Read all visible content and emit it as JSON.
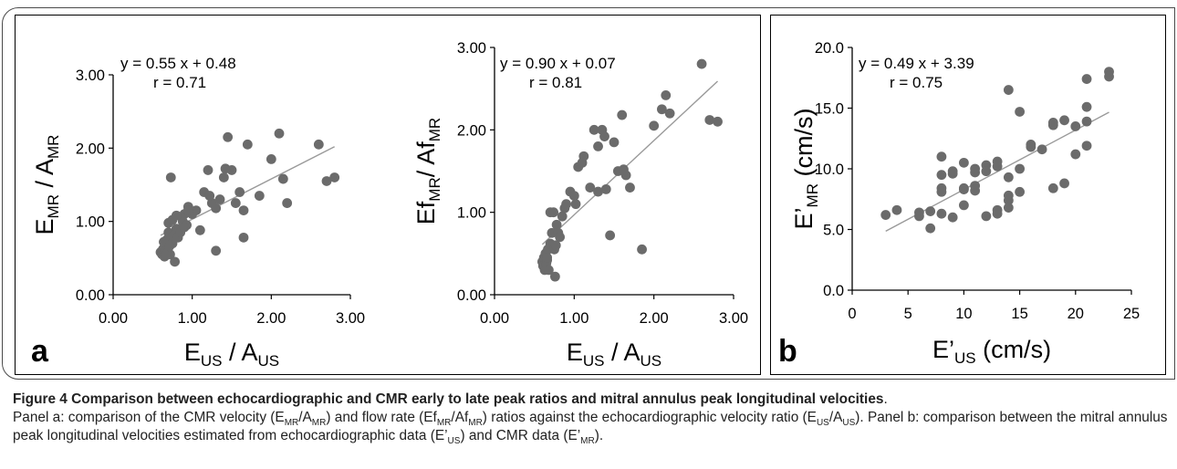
{
  "chart_data": [
    {
      "type": "scatter",
      "panel": "a",
      "xlabel": {
        "main": "E",
        "sub": "US",
        "sep": " / ",
        "main2": "A",
        "sub2": "US"
      },
      "ylabel": {
        "main": "E",
        "sub": "MR",
        "sep": " / ",
        "main2": "A",
        "sub2": "MR"
      },
      "xlim": [
        0,
        3
      ],
      "ylim": [
        0,
        3
      ],
      "xticks": [
        "0.00",
        "1.00",
        "2.00",
        "3.00"
      ],
      "yticks": [
        "0.00",
        "1.00",
        "2.00",
        "3.00"
      ],
      "equation": "y = 0.55 x + 0.48",
      "r_label": "r = 0.71",
      "fit": {
        "slope": 0.55,
        "intercept": 0.48,
        "x": [
          0.6,
          2.8
        ]
      },
      "x": [
        0.6,
        0.62,
        0.63,
        0.65,
        0.66,
        0.68,
        0.7,
        0.72,
        0.73,
        0.75,
        0.76,
        0.78,
        0.8,
        0.82,
        0.85,
        0.88,
        0.9,
        0.93,
        0.95,
        1.0,
        1.05,
        1.1,
        1.15,
        1.2,
        1.25,
        1.3,
        1.35,
        1.4,
        1.45,
        1.5,
        1.55,
        1.6,
        1.65,
        1.7,
        1.85,
        2.0,
        2.1,
        2.15,
        2.2,
        2.6,
        2.7,
        2.8,
        0.7,
        0.75,
        0.95,
        1.3,
        1.65,
        0.67,
        0.8,
        0.9,
        1.22,
        1.42,
        0.64,
        0.71
      ],
      "y": [
        0.58,
        0.55,
        0.62,
        0.52,
        0.6,
        0.75,
        0.85,
        0.55,
        1.6,
        0.7,
        0.8,
        0.45,
        0.9,
        0.78,
        0.85,
        1.0,
        1.1,
        0.95,
        1.2,
        1.1,
        1.15,
        0.88,
        1.4,
        1.7,
        1.25,
        1.18,
        1.3,
        1.6,
        2.15,
        1.7,
        1.25,
        1.4,
        0.78,
        2.05,
        1.35,
        1.85,
        2.2,
        1.58,
        1.25,
        2.05,
        1.55,
        1.6,
        0.98,
        1.02,
        1.15,
        0.6,
        1.15,
        0.56,
        1.08,
        0.92,
        1.35,
        1.72,
        0.72,
        0.66
      ]
    },
    {
      "type": "scatter",
      "panel": "a",
      "xlabel": {
        "main": "E",
        "sub": "US",
        "sep": " / ",
        "main2": "A",
        "sub2": "US"
      },
      "ylabel": {
        "main": "Ef",
        "sub": "MR",
        "sep": "/ ",
        "main2": "Af",
        "sub2": "MR"
      },
      "xlim": [
        0,
        3
      ],
      "ylim": [
        0,
        3
      ],
      "xticks": [
        "0.00",
        "1.00",
        "2.00",
        "3.00"
      ],
      "yticks": [
        "0.00",
        "1.00",
        "2.00",
        "3.00"
      ],
      "equation": "y = 0.90 x + 0.07",
      "r_label": "r = 0.81",
      "fit": {
        "slope": 0.9,
        "intercept": 0.07,
        "x": [
          0.6,
          2.8
        ]
      },
      "x": [
        0.6,
        0.61,
        0.62,
        0.63,
        0.64,
        0.65,
        0.66,
        0.67,
        0.68,
        0.7,
        0.72,
        0.74,
        0.75,
        0.76,
        0.78,
        0.8,
        0.82,
        0.85,
        0.88,
        0.9,
        0.95,
        1.0,
        1.02,
        1.05,
        1.1,
        1.12,
        1.2,
        1.25,
        1.3,
        1.35,
        1.38,
        1.4,
        1.45,
        1.5,
        1.55,
        1.6,
        1.65,
        1.7,
        1.85,
        2.0,
        2.1,
        2.15,
        2.2,
        2.6,
        2.7,
        2.8,
        0.66,
        0.7,
        0.77,
        1.3,
        1.62
      ],
      "y": [
        0.4,
        0.35,
        0.45,
        0.3,
        0.5,
        0.38,
        0.42,
        0.55,
        0.3,
        0.62,
        0.75,
        1.0,
        0.55,
        0.22,
        0.85,
        0.75,
        0.7,
        0.95,
        1.05,
        1.1,
        1.25,
        1.2,
        1.1,
        1.55,
        1.6,
        1.68,
        1.3,
        2.0,
        1.8,
        2.0,
        1.92,
        1.28,
        0.72,
        1.85,
        1.5,
        2.18,
        1.45,
        1.3,
        0.55,
        2.05,
        2.25,
        2.42,
        2.2,
        2.8,
        2.12,
        2.1,
        0.45,
        1.0,
        0.6,
        1.25,
        1.52
      ]
    },
    {
      "type": "scatter",
      "panel": "b",
      "xlabel": {
        "main": "E’",
        "sub": "US",
        "unit": "(cm/s)"
      },
      "ylabel": {
        "main": "E’",
        "sub": "MR",
        "unit": "(cm/s)"
      },
      "xlim": [
        0,
        25
      ],
      "ylim": [
        0,
        20
      ],
      "xticks": [
        "0",
        "5",
        "10",
        "15",
        "20",
        "25"
      ],
      "yticks": [
        "0.0",
        "5.0",
        "10.0",
        "15.0",
        "20.0"
      ],
      "equation": "y = 0.49 x + 3.39",
      "r_label": "r = 0.75",
      "fit": {
        "slope": 0.49,
        "intercept": 3.39,
        "x": [
          3,
          23
        ]
      },
      "x": [
        3,
        4,
        6,
        6,
        7,
        7,
        8,
        8,
        8,
        8,
        8,
        9,
        9,
        9,
        10,
        10,
        10,
        10,
        11,
        11,
        11,
        11,
        12,
        12,
        12,
        13,
        13,
        13,
        13,
        14,
        14,
        14,
        14,
        14,
        15,
        15,
        15,
        16,
        16,
        17,
        18,
        18,
        18,
        19,
        19,
        20,
        20,
        21,
        21,
        21,
        21,
        23,
        23
      ],
      "y": [
        6.2,
        6.6,
        6.4,
        6.1,
        5.1,
        6.5,
        11.0,
        9.5,
        8.4,
        8.1,
        6.3,
        9.6,
        6.0,
        9.8,
        10.5,
        8.3,
        8.4,
        7.0,
        9.7,
        8.6,
        8.2,
        10.0,
        10.3,
        9.8,
        6.1,
        10.2,
        10.6,
        6.6,
        6.3,
        16.5,
        9.3,
        7.8,
        7.4,
        6.8,
        14.7,
        10.0,
        8.1,
        12.0,
        11.8,
        11.6,
        13.6,
        13.8,
        8.4,
        14.0,
        8.8,
        13.5,
        11.2,
        17.4,
        15.1,
        13.9,
        11.9,
        18.0,
        17.6
      ]
    }
  ],
  "panel_letters": {
    "a": "a",
    "b": "b"
  },
  "colors": {
    "points": "#6b6b6b",
    "fit_line": "#9a9a9a",
    "axes": "#000000"
  },
  "caption": {
    "title": "Figure 4 Comparison between echocardiographic and CMR early to late peak ratios and mitral annulus peak longitudinal velocities",
    "title_end": ".",
    "p1": "Panel a: comparison of the CMR velocity (",
    "p1_e": "E",
    "p1_e_sub": "MR",
    "p1_slash": "/",
    "p1_a": "A",
    "p1_a_sub": "MR",
    "p2": ") and flow rate (",
    "p2_e": "Ef",
    "p2_e_sub": "MR",
    "p2_slash": "/",
    "p2_a": "Af",
    "p2_a_sub": "MR",
    "p3": ") ratios against the echocardiographic velocity ratio (",
    "p3_e": "E",
    "p3_e_sub": "US",
    "p3_slash": "/",
    "p3_a": "A",
    "p3_a_sub": "US",
    "p4": "). Panel b: comparison between the mitral annulus peak longitudinal velocities estimated from echocardiographic data (",
    "p4_e": "E’",
    "p4_e_sub": "US",
    "p5": ") and CMR data (",
    "p5_e": "E’",
    "p5_e_sub": "MR",
    "p6": ")."
  }
}
